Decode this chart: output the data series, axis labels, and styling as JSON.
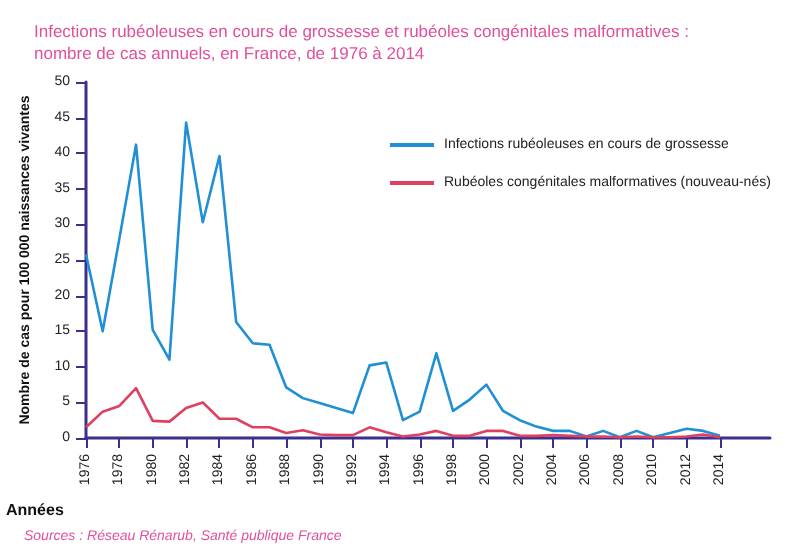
{
  "chart_data": {
    "type": "line",
    "title": "Infections rubéoleuses en cours de grossesse et rubéoles congénitales malformatives :\nnombre de cas annuels, en France, de 1976 à 2014",
    "xlabel": "Années",
    "ylabel": "Nombre de cas pour 100 000 naissances vivantes",
    "annotations": [
      "Sources : Réseau Rénarub, Santé publique France"
    ],
    "x": [
      1976,
      1977,
      1978,
      1979,
      1980,
      1981,
      1982,
      1983,
      1984,
      1985,
      1986,
      1987,
      1988,
      1989,
      1990,
      1991,
      1992,
      1993,
      1994,
      1995,
      1996,
      1997,
      1998,
      1999,
      2000,
      2001,
      2002,
      2003,
      2004,
      2005,
      2006,
      2007,
      2008,
      2009,
      2010,
      2011,
      2012,
      2013,
      2014
    ],
    "series": [
      {
        "name": "Infections rubéoleuses en cours de grossesse",
        "color": "#1f8fd6",
        "values": [
          25.8,
          15,
          28,
          41.2,
          15.2,
          11,
          44.3,
          30.3,
          39.6,
          16.3,
          13.3,
          13.1,
          7.1,
          5.6,
          4.9,
          4.2,
          3.5,
          10.2,
          10.6,
          2.5,
          3.7,
          11.9,
          3.8,
          5.4,
          7.5,
          3.8,
          2.5,
          1.6,
          1.0,
          1.0,
          0.2,
          1.0,
          0.1,
          1.0,
          0.1,
          0.7,
          1.3,
          1.0,
          0.3
        ]
      },
      {
        "name": "Rubéoles congénitales malformatives (nouveau-nés)",
        "color": "#e0405f",
        "values": [
          1.5,
          3.7,
          4.5,
          7.0,
          2.4,
          2.3,
          4.2,
          5.0,
          2.7,
          2.7,
          1.5,
          1.5,
          0.7,
          1.1,
          0.5,
          0.4,
          0.4,
          1.5,
          0.8,
          0.2,
          0.5,
          1.0,
          0.3,
          0.3,
          1.0,
          1.0,
          0.3,
          0.3,
          0.4,
          0.3,
          0.2,
          0.2,
          0.1,
          0.2,
          0.1,
          0.1,
          0.2,
          0.5,
          0.1
        ]
      }
    ],
    "xlim": [
      1976,
      2017
    ],
    "xticks": [
      1976,
      1978,
      1980,
      1982,
      1984,
      1986,
      1988,
      1990,
      1992,
      1994,
      1996,
      1998,
      2000,
      2002,
      2004,
      2006,
      2008,
      2010,
      2012,
      2014
    ],
    "ylim": [
      0,
      50
    ],
    "yticks": [
      0,
      5,
      10,
      15,
      20,
      25,
      30,
      35,
      40,
      45,
      50
    ],
    "grid": false,
    "legend": "top right",
    "marker": "none",
    "line_style": "solid"
  }
}
